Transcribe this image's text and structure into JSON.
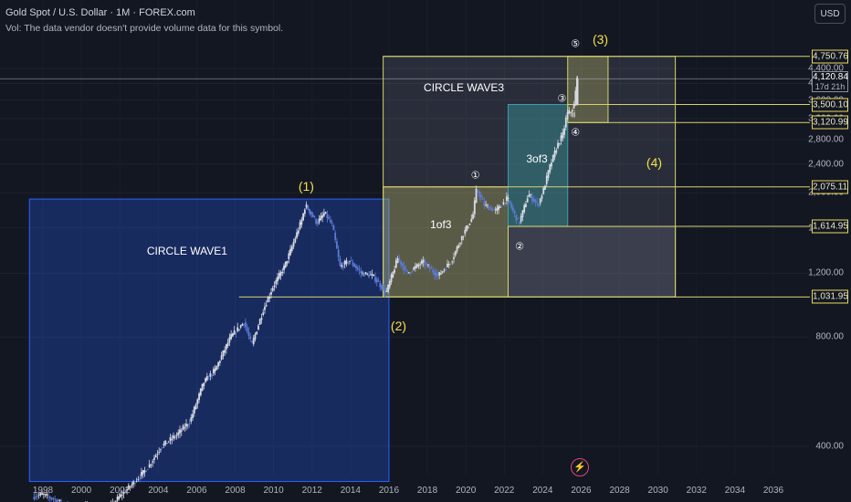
{
  "header": {
    "title": "Gold Spot / U.S. Dollar · 1M · FOREX.com",
    "volume_note": "Vol: The data vendor doesn't provide volume data for this symbol."
  },
  "currency_button": "USD",
  "colors": {
    "background": "#131722",
    "candle": "#d9dbe3",
    "candle_alt": "#5b7bd6",
    "wave_label": "#f5e04a",
    "box_blue": "#2962ff",
    "box_yellow": "#d8d36a",
    "box_teal": "#3f9fa8",
    "box_gray": "#7b8190"
  },
  "chart_data": {
    "type": "candlestick",
    "symbol": "XAUUSD",
    "interval": "1M",
    "x_axis": {
      "label": "",
      "ticks": [
        "1998",
        "2000",
        "2002",
        "2004",
        "2006",
        "2008",
        "2010",
        "2012",
        "2014",
        "2016",
        "2018",
        "2020",
        "2022",
        "2024",
        "2026",
        "2028",
        "2030",
        "2032",
        "2034",
        "2036"
      ],
      "range": [
        1997.3,
        2037.2
      ]
    },
    "y_axis": {
      "label": "",
      "ticks": [
        "400.00",
        "800.00",
        "1,200.00",
        "1,600.00",
        "2,000.00",
        "2,400.00",
        "2,800.00",
        "3,200.00",
        "3,600.00",
        "4,000.00",
        "4,400.00"
      ],
      "scale": "log",
      "range": [
        300,
        6000
      ]
    },
    "price_series": [
      {
        "x": 1997.5,
        "y": 290
      },
      {
        "x": 1998.0,
        "y": 295
      },
      {
        "x": 1999.0,
        "y": 280
      },
      {
        "x": 1999.8,
        "y": 265
      },
      {
        "x": 2000.5,
        "y": 275
      },
      {
        "x": 2001.3,
        "y": 262
      },
      {
        "x": 2002.0,
        "y": 290
      },
      {
        "x": 2002.7,
        "y": 315
      },
      {
        "x": 2003.5,
        "y": 350
      },
      {
        "x": 2004.2,
        "y": 400
      },
      {
        "x": 2005.0,
        "y": 430
      },
      {
        "x": 2005.7,
        "y": 470
      },
      {
        "x": 2006.4,
        "y": 600
      },
      {
        "x": 2007.0,
        "y": 650
      },
      {
        "x": 2007.8,
        "y": 800
      },
      {
        "x": 2008.5,
        "y": 880
      },
      {
        "x": 2008.9,
        "y": 760
      },
      {
        "x": 2009.5,
        "y": 950
      },
      {
        "x": 2010.0,
        "y": 1100
      },
      {
        "x": 2010.6,
        "y": 1250
      },
      {
        "x": 2011.0,
        "y": 1420
      },
      {
        "x": 2011.5,
        "y": 1680
      },
      {
        "x": 2011.7,
        "y": 1850
      },
      {
        "x": 2012.3,
        "y": 1650
      },
      {
        "x": 2012.7,
        "y": 1760
      },
      {
        "x": 2013.1,
        "y": 1620
      },
      {
        "x": 2013.5,
        "y": 1250
      },
      {
        "x": 2014.0,
        "y": 1300
      },
      {
        "x": 2014.6,
        "y": 1200
      },
      {
        "x": 2015.2,
        "y": 1180
      },
      {
        "x": 2015.9,
        "y": 1060
      },
      {
        "x": 2016.5,
        "y": 1320
      },
      {
        "x": 2017.0,
        "y": 1200
      },
      {
        "x": 2017.8,
        "y": 1290
      },
      {
        "x": 2018.6,
        "y": 1180
      },
      {
        "x": 2019.3,
        "y": 1300
      },
      {
        "x": 2019.8,
        "y": 1500
      },
      {
        "x": 2020.4,
        "y": 1720
      },
      {
        "x": 2020.6,
        "y": 2050
      },
      {
        "x": 2021.0,
        "y": 1850
      },
      {
        "x": 2021.6,
        "y": 1780
      },
      {
        "x": 2022.2,
        "y": 1930
      },
      {
        "x": 2022.8,
        "y": 1640
      },
      {
        "x": 2023.3,
        "y": 1980
      },
      {
        "x": 2023.8,
        "y": 1850
      },
      {
        "x": 2024.1,
        "y": 2050
      },
      {
        "x": 2024.4,
        "y": 2350
      },
      {
        "x": 2024.8,
        "y": 2700
      },
      {
        "x": 2025.1,
        "y": 2900
      },
      {
        "x": 2025.3,
        "y": 3300
      },
      {
        "x": 2025.5,
        "y": 3350
      },
      {
        "x": 2025.7,
        "y": 3500
      },
      {
        "x": 2025.8,
        "y": 4120.84
      }
    ],
    "last_price": "4,120.84",
    "countdown": "17d 21h",
    "price_levels": [
      {
        "value": 4750.76,
        "label": "4,750.76"
      },
      {
        "value": 3500.1,
        "label": "3,500.10"
      },
      {
        "value": 3120.99,
        "label": "3,120.99"
      },
      {
        "value": 2075.11,
        "label": "2,075.11"
      },
      {
        "value": 1614.95,
        "label": "1,614.95"
      },
      {
        "value": 1031.95,
        "label": "1,031.95"
      }
    ],
    "zones": [
      {
        "name": "CIRCLE WAVE1",
        "color": "blue",
        "x_start": 1997.3,
        "x_end": 2016.0,
        "y_low": 320,
        "y_high": 1921
      },
      {
        "name": "CIRCLE WAVE3",
        "color": "gray",
        "x_start": 2015.7,
        "x_end": 2030.9,
        "y_low": 1031.95,
        "y_high": 4750.76
      },
      {
        "name": "1of3",
        "color": "yellow",
        "x_start": 2015.7,
        "x_end": 2022.2,
        "y_low": 1031.95,
        "y_high": 2075.11
      },
      {
        "name": "3of3",
        "color": "teal",
        "x_start": 2022.2,
        "x_end": 2025.3,
        "y_low": 1614.95,
        "y_high": 3500.1
      },
      {
        "name": "",
        "color": "yellow",
        "x_start": 2025.3,
        "x_end": 2027.4,
        "y_low": 3120.99,
        "y_high": 4750.76
      },
      {
        "name": "",
        "color": "gray",
        "x_start": 2022.2,
        "x_end": 2030.9,
        "y_low": 1031.95,
        "y_high": 1614.95
      }
    ],
    "wave_labels": [
      {
        "text": "(1)",
        "x": 2011.7,
        "y": 2080
      },
      {
        "text": "(2)",
        "x": 2016.5,
        "y": 860
      },
      {
        "text": "(3)",
        "x": 2027.0,
        "y": 5300
      },
      {
        "text": "(4)",
        "x": 2029.8,
        "y": 2420
      }
    ],
    "minor_labels": [
      {
        "text": "①",
        "x": 2020.5,
        "y": 2230
      },
      {
        "text": "②",
        "x": 2022.8,
        "y": 1420
      },
      {
        "text": "③",
        "x": 2025.0,
        "y": 3640
      },
      {
        "text": "④",
        "x": 2025.7,
        "y": 2930
      },
      {
        "text": "⑤",
        "x": 2025.7,
        "y": 5150
      },
      {
        "text": "ii",
        "x": 2025.6,
        "y": 3280
      }
    ]
  }
}
